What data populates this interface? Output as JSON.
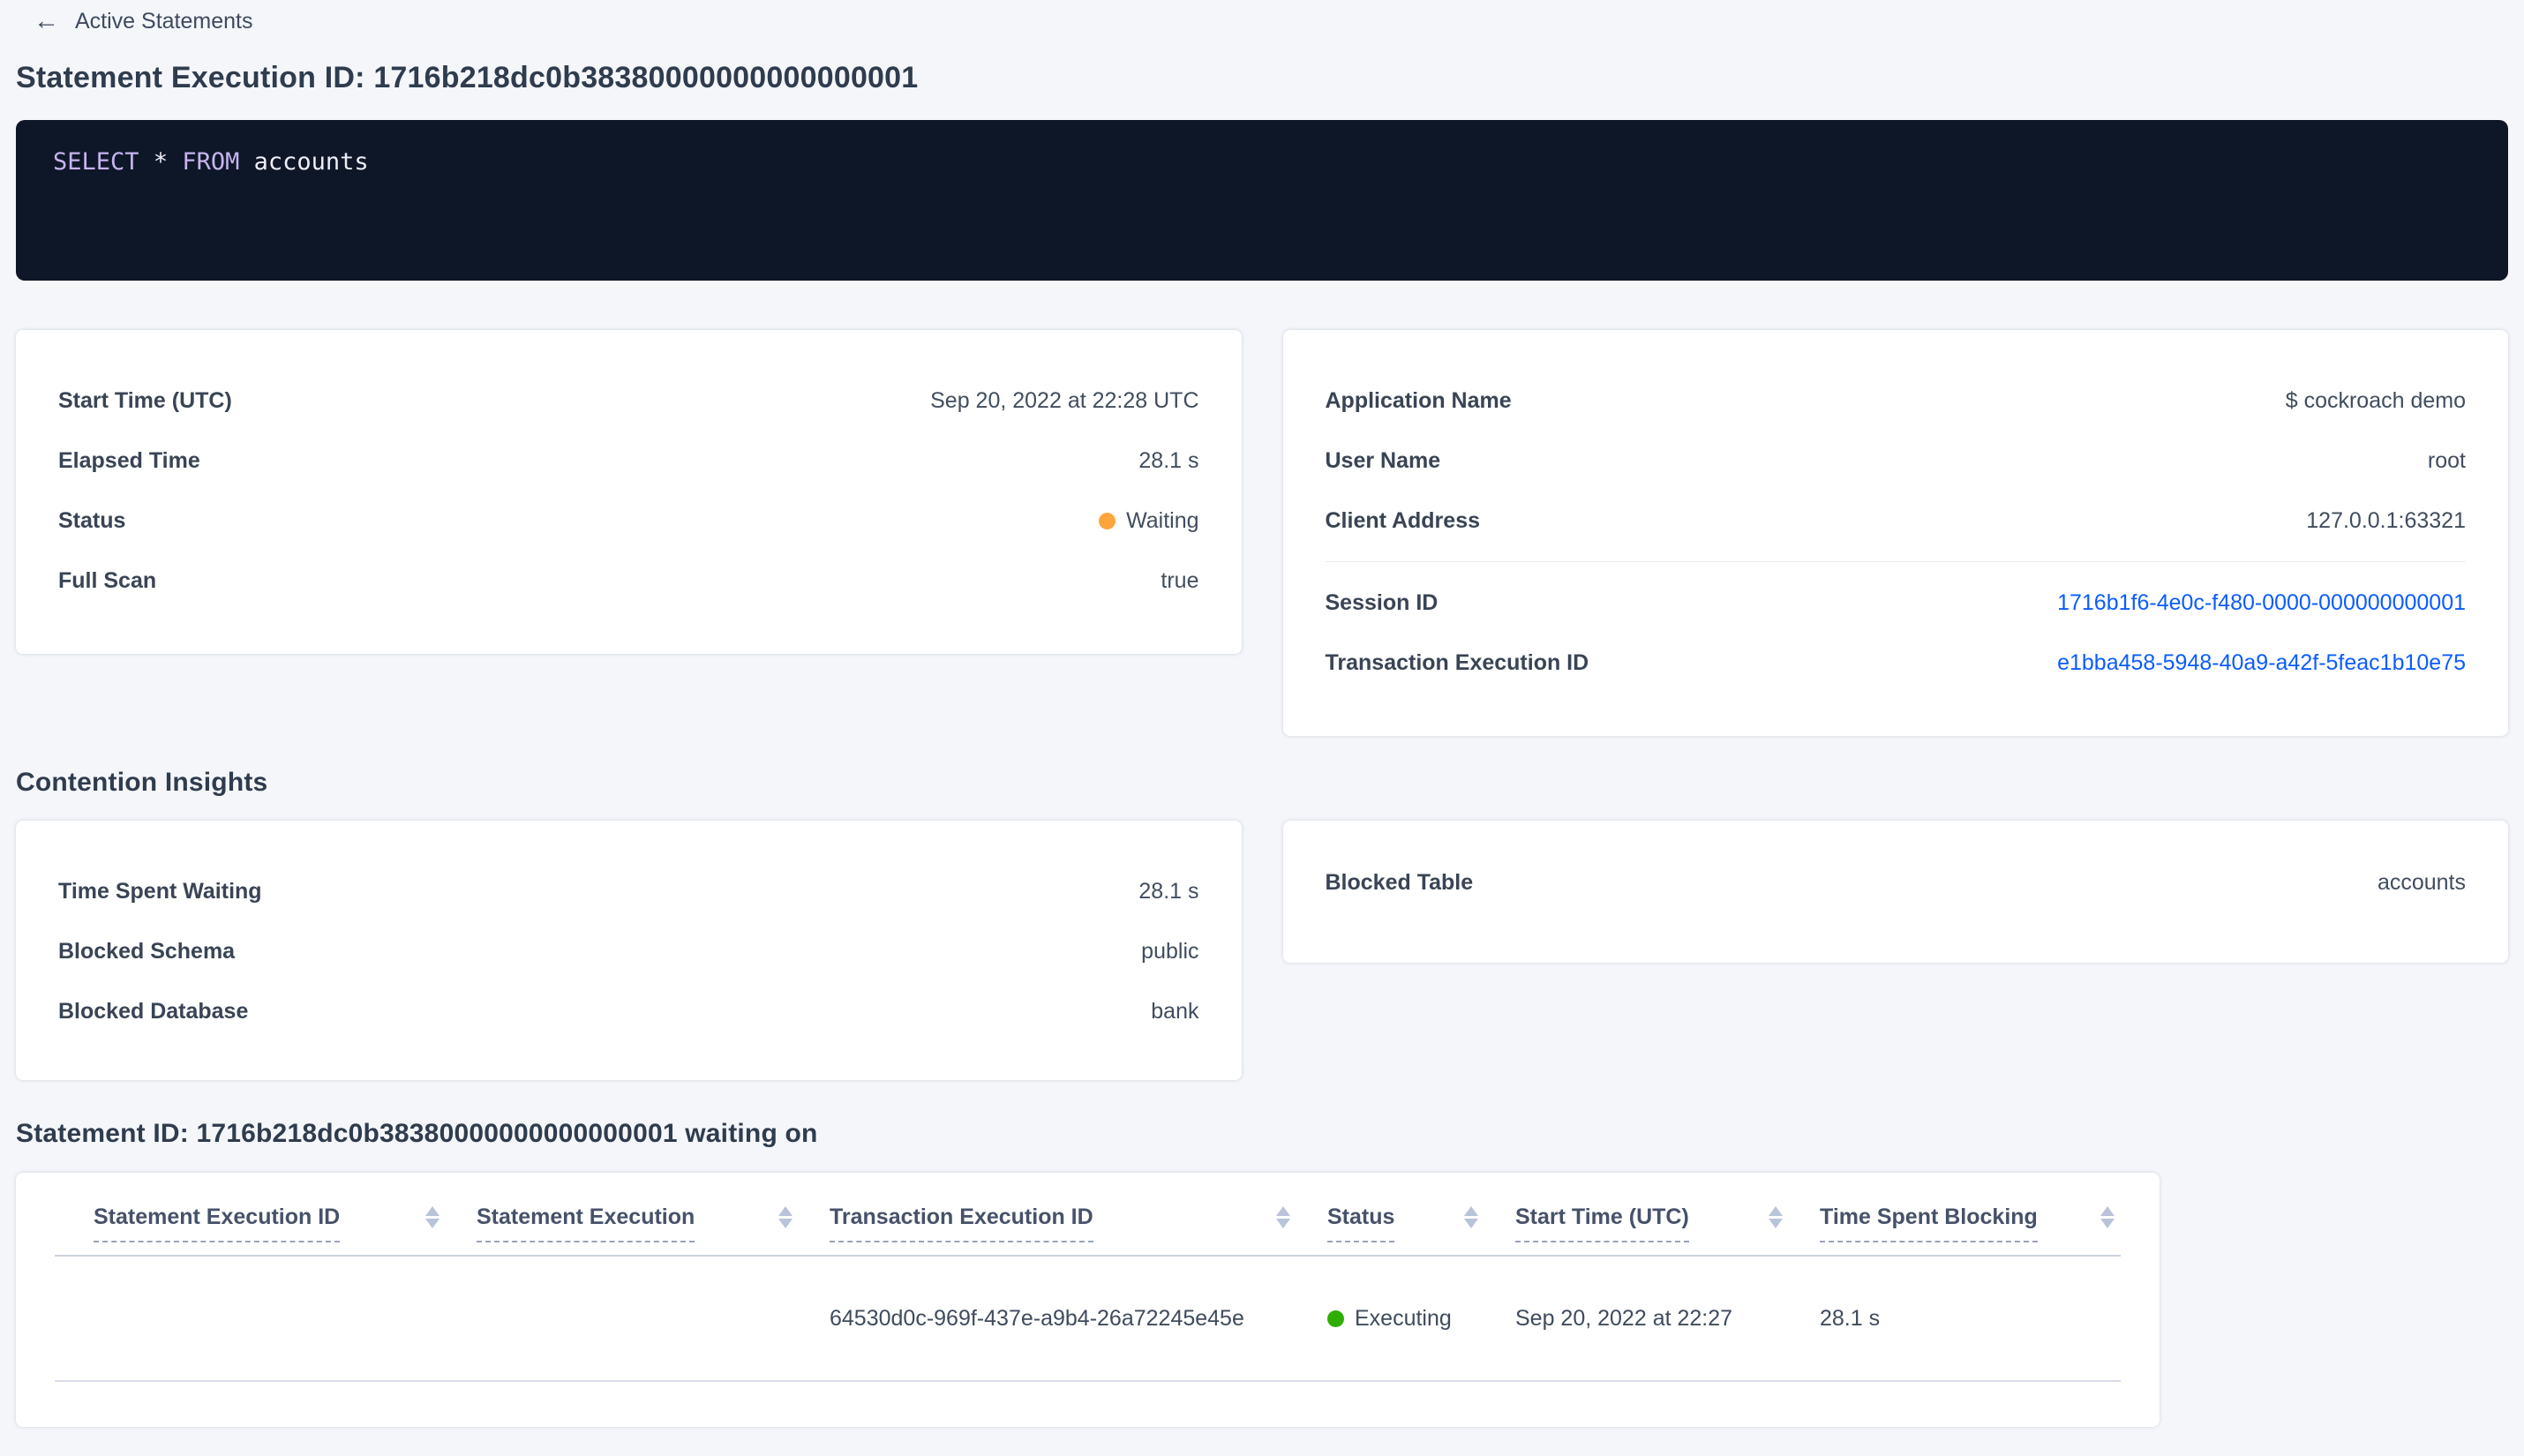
{
  "breadcrumb": {
    "back_label": "Active Statements"
  },
  "icons": {
    "back_arrow": "←"
  },
  "title": "Statement Execution ID: 1716b218dc0b38380000000000000001",
  "sql": {
    "keyword_select": "SELECT",
    "operator_star": "*",
    "keyword_from": "FROM",
    "table_name": "accounts"
  },
  "overview_card": {
    "rows": [
      {
        "label": "Start Time (UTC)",
        "value": "Sep 20, 2022 at 22:28 UTC"
      },
      {
        "label": "Elapsed Time",
        "value": "28.1 s"
      },
      {
        "label": "Status",
        "value": "Waiting",
        "status_color": "#ffa53d"
      },
      {
        "label": "Full Scan",
        "value": "true"
      }
    ]
  },
  "session_card": {
    "rows_top": [
      {
        "label": "Application Name",
        "value": "$ cockroach demo"
      },
      {
        "label": "User Name",
        "value": "root"
      },
      {
        "label": "Client Address",
        "value": "127.0.0.1:63321"
      }
    ],
    "rows_links": [
      {
        "label": "Session ID",
        "value": "1716b1f6-4e0c-f480-0000-000000000001"
      },
      {
        "label": "Transaction Execution ID",
        "value": "e1bba458-5948-40a9-a42f-5feac1b10e75"
      }
    ]
  },
  "contention": {
    "heading": "Contention Insights",
    "left_rows": [
      {
        "label": "Time Spent Waiting",
        "value": "28.1 s"
      },
      {
        "label": "Blocked Schema",
        "value": "public"
      },
      {
        "label": "Blocked Database",
        "value": "bank"
      }
    ],
    "right_rows": [
      {
        "label": "Blocked Table",
        "value": "accounts"
      }
    ]
  },
  "waiting_table": {
    "heading": "Statement ID: 1716b218dc0b38380000000000000001 waiting on",
    "columns": [
      "Statement Execution ID",
      "Statement Execution",
      "Transaction Execution ID",
      "Status",
      "Start Time (UTC)",
      "Time Spent Blocking"
    ],
    "row": {
      "statement_execution_id": "",
      "statement_execution": "",
      "transaction_execution_id": "64530d0c-969f-437e-a9b4-26a72245e45e",
      "status": "Executing",
      "status_color": "#2eae05",
      "start_time": "Sep 20, 2022 at 22:27",
      "time_spent_blocking": "28.1 s"
    }
  },
  "colors": {
    "page_background": "#f4f6fa",
    "card_background": "#ffffff",
    "code_background": "#0e1728",
    "sql_keyword": "#c7b3ee",
    "sql_text": "#edeff7",
    "link_blue": "#0b5cff",
    "status_waiting_orange": "#ffa53d",
    "status_executing_green": "#2eae05",
    "heading_text": "#2e3c4e",
    "label_text": "#394455"
  }
}
